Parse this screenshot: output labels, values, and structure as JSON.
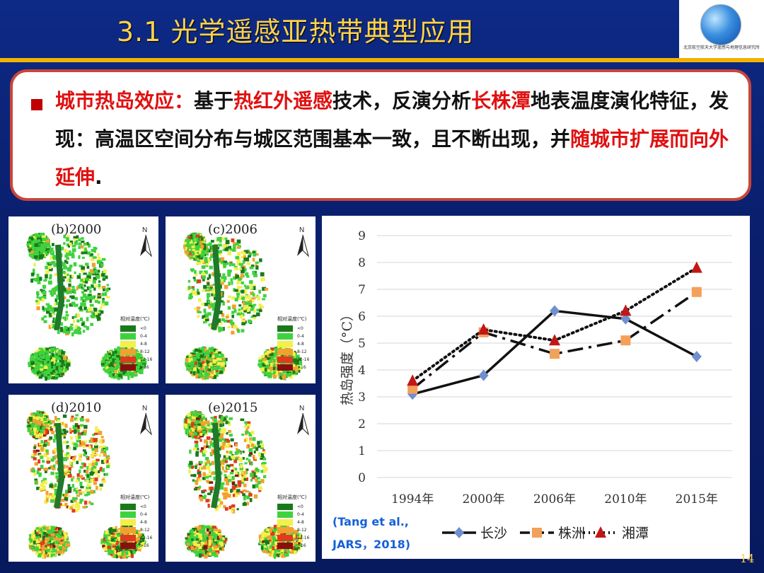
{
  "header": {
    "title": "3.1  光学遥感亚热带典型应用",
    "logo_text": "北京航空航天大学遥感与地理信息研究所"
  },
  "textbox": {
    "segments": [
      {
        "text": "城市热岛效应：",
        "red": true
      },
      {
        "text": "基于",
        "red": false
      },
      {
        "text": "热红外遥感",
        "red": true
      },
      {
        "text": "技术，反演分析",
        "red": false
      },
      {
        "text": "长株潭",
        "red": true
      },
      {
        "text": "地表温度演化特征，发现：高温区空间分布与城区范围基本一致，且不断出现，并",
        "red": false
      },
      {
        "text": "随城市扩展而向外延伸",
        "red": true
      },
      {
        "text": ".",
        "red": false
      }
    ]
  },
  "maps": [
    {
      "label": "(b)2000",
      "north": "N",
      "legend_title": "相对温度(℃)",
      "intensity": 0
    },
    {
      "label": "(c)2006",
      "north": "N",
      "legend_title": "相对温度(℃)",
      "intensity": 1
    },
    {
      "label": "(d)2010",
      "north": "N",
      "legend_title": "相对温度(℃)",
      "intensity": 2
    },
    {
      "label": "(e)2015",
      "north": "N",
      "legend_title": "相对温度(℃)",
      "intensity": 3
    }
  ],
  "legend_items": [
    {
      "label": "<0",
      "color": "#1a7a1a"
    },
    {
      "label": "0-4",
      "color": "#3fd23f"
    },
    {
      "label": "4-8",
      "color": "#f3f04a"
    },
    {
      "label": "8-12",
      "color": "#f3a030"
    },
    {
      "label": "12-16",
      "color": "#e23a20"
    },
    {
      "label": ">16",
      "color": "#8a1010"
    }
  ],
  "chart_data": {
    "type": "line",
    "categories": [
      "1994年",
      "2000年",
      "2006年",
      "2010年",
      "2015年"
    ],
    "series": [
      {
        "name": "长沙",
        "values": [
          3.1,
          3.8,
          6.2,
          5.9,
          4.5
        ],
        "color": "#111111",
        "marker": "diamond",
        "marker_color": "#6f8fcf",
        "line": "solid"
      },
      {
        "name": "株洲",
        "values": [
          3.3,
          5.4,
          4.6,
          5.1,
          6.9
        ],
        "color": "#111111",
        "marker": "square",
        "marker_color": "#f2a05a",
        "line": "dashed"
      },
      {
        "name": "湘潭",
        "values": [
          3.6,
          5.5,
          5.1,
          6.2,
          7.8
        ],
        "color": "#111111",
        "marker": "triangle",
        "marker_color": "#c01818",
        "line": "dotted"
      }
    ],
    "ylabel": "热岛强度（°C）",
    "ylim": [
      0,
      9
    ],
    "yticks": [
      "0",
      "1",
      "2",
      "3",
      "4",
      "5",
      "6",
      "7",
      "8",
      "9"
    ],
    "grid": true,
    "legend": "bottom"
  },
  "citation": {
    "line1": "(Tang et al.,",
    "line2": "JARS，2018)"
  },
  "page_number": "14"
}
